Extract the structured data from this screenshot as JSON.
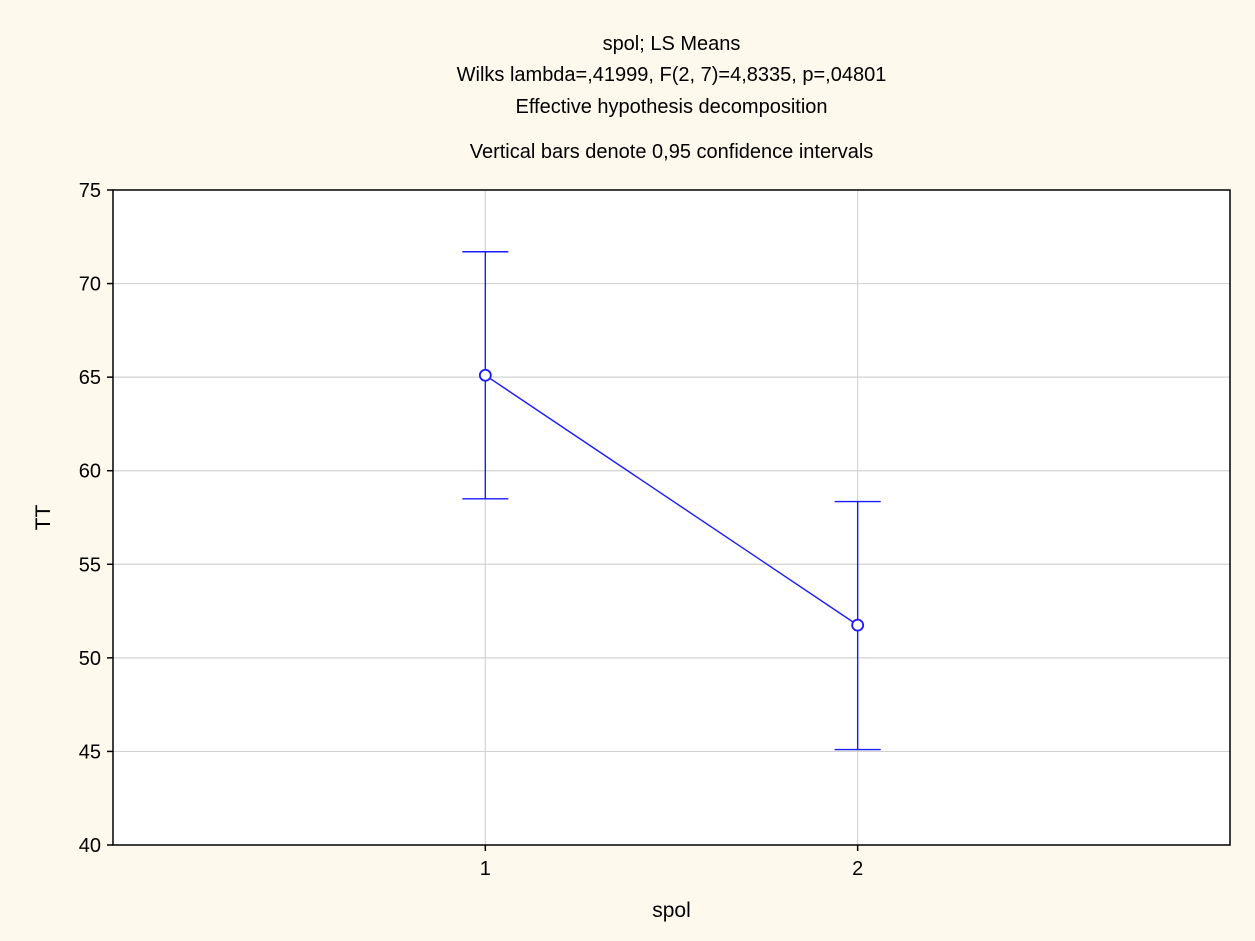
{
  "chart_data": {
    "type": "line",
    "title": [
      "spol; LS Means",
      "Wilks lambda=,41999, F(2, 7)=4,8335, p=,04801",
      "Effective hypothesis decomposition",
      "Vertical bars denote 0,95 confidence intervals"
    ],
    "xlabel": "spol",
    "ylabel": "TT",
    "categories": [
      "1",
      "2"
    ],
    "series": [
      {
        "values": [
          65.1,
          51.75
        ],
        "ci_lower": [
          58.5,
          45.1
        ],
        "ci_upper": [
          71.7,
          58.35
        ]
      }
    ],
    "ylim": [
      40,
      75
    ],
    "yticks": [
      40,
      45,
      50,
      55,
      60,
      65,
      70,
      75
    ],
    "grid": true,
    "legend": "none",
    "colors": {
      "background": "#fdf9ed",
      "plot_background": "#ffffff",
      "series": "#1a1aff",
      "grid": "#d3d3d3",
      "axis": "#000000"
    }
  }
}
